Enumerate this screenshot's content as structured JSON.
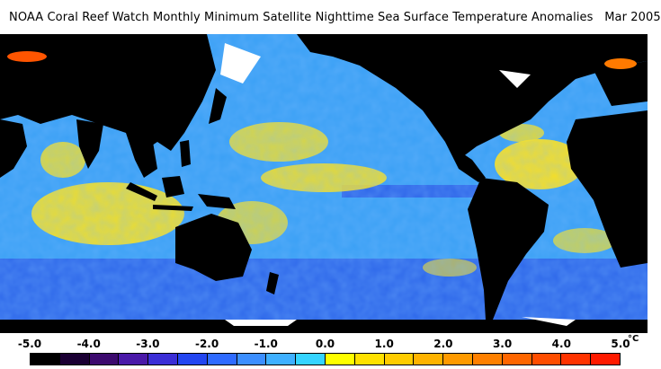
{
  "title": "NOAA Coral Reef Watch Monthly Minimum Satellite Nighttime Sea Surface Temperature Anomalies",
  "date": "Mar 2005",
  "colorbar": {
    "tick_labels": [
      "-5.0",
      "-4.0",
      "-3.0",
      "-2.0",
      "-1.0",
      "0.0",
      "1.0",
      "2.0",
      "3.0",
      "4.0",
      "5.0"
    ],
    "unit": "°C",
    "colors": [
      "#000000",
      "#1a0033",
      "#3c0a6e",
      "#4a19a8",
      "#3b2ed6",
      "#2346f0",
      "#2f6bff",
      "#3c8fff",
      "#3fb0ff",
      "#35d4ff",
      "#ffff00",
      "#ffe100",
      "#ffcc00",
      "#ffb300",
      "#ff9a00",
      "#ff8000",
      "#ff6600",
      "#ff4d00",
      "#ff3300",
      "#ff1a00"
    ]
  },
  "map_colors": {
    "land": "#000000",
    "ice": "#ffffff",
    "ocean_base": "#3aa0f5",
    "warm": "#ffe21a",
    "cool": "#2b56e6"
  }
}
